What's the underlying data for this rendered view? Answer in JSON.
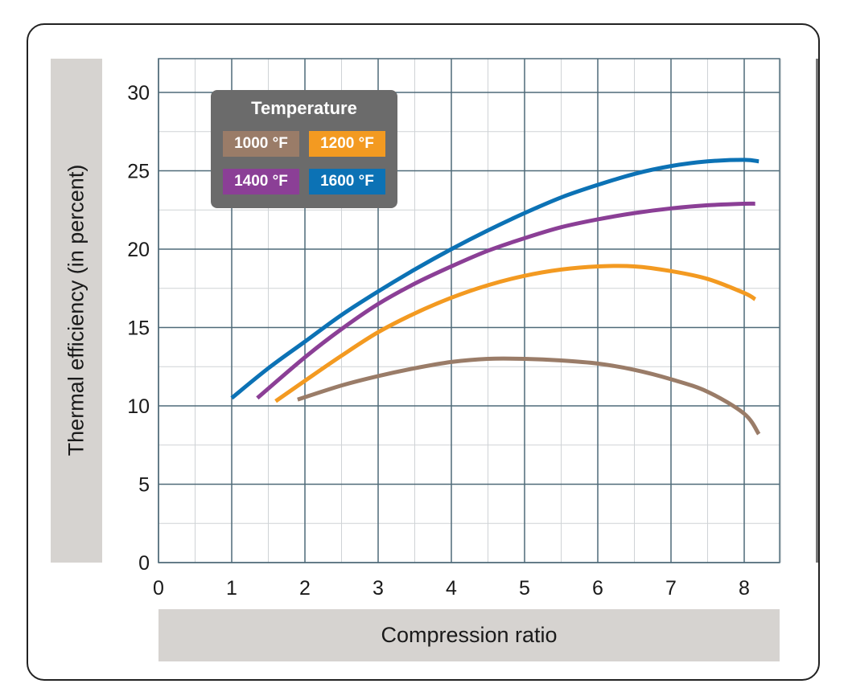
{
  "chart_data": {
    "type": "line",
    "xlabel": "Compression ratio",
    "ylabel": "Thermal efficiency (in percent)",
    "xlim": [
      0,
      8.5
    ],
    "ylim": [
      0,
      30
    ],
    "x_ticks": [
      0,
      1,
      2,
      3,
      4,
      5,
      6,
      7,
      8
    ],
    "y_ticks": [
      0,
      5,
      10,
      15,
      20,
      25,
      30
    ],
    "grid": true,
    "legend_title": "Temperature",
    "legend_placement": "top-left",
    "series": [
      {
        "name": "1000 °F",
        "color": "#9a7c68",
        "x": [
          1.9,
          2.5,
          3,
          3.5,
          4,
          4.5,
          5,
          5.5,
          6,
          6.5,
          7,
          7.5,
          8,
          8.2
        ],
        "y": [
          10.4,
          11.3,
          11.9,
          12.4,
          12.8,
          13.0,
          13.0,
          12.9,
          12.7,
          12.3,
          11.7,
          10.9,
          9.5,
          8.2
        ]
      },
      {
        "name": "1200 °F",
        "color": "#f39a21",
        "x": [
          1.6,
          2,
          2.5,
          3,
          3.5,
          4,
          4.5,
          5,
          5.5,
          6,
          6.5,
          7,
          7.5,
          8,
          8.15
        ],
        "y": [
          10.3,
          11.6,
          13.2,
          14.7,
          15.9,
          16.9,
          17.7,
          18.3,
          18.7,
          18.9,
          18.9,
          18.6,
          18.1,
          17.2,
          16.8
        ]
      },
      {
        "name": "1400 °F",
        "color": "#8b3f96",
        "x": [
          1.35,
          2,
          2.5,
          3,
          3.5,
          4,
          4.5,
          5,
          5.5,
          6,
          6.5,
          7,
          7.5,
          8,
          8.15
        ],
        "y": [
          10.5,
          13.1,
          14.9,
          16.5,
          17.8,
          18.9,
          19.9,
          20.7,
          21.4,
          21.9,
          22.3,
          22.6,
          22.8,
          22.9,
          22.9
        ]
      },
      {
        "name": "1600 °F",
        "color": "#0c72b5",
        "x": [
          1,
          1.5,
          2,
          2.5,
          3,
          3.5,
          4,
          4.5,
          5,
          5.5,
          6,
          6.5,
          7,
          7.5,
          8,
          8.2
        ],
        "y": [
          10.5,
          12.4,
          14.1,
          15.8,
          17.3,
          18.7,
          20.0,
          21.2,
          22.3,
          23.3,
          24.1,
          24.8,
          25.3,
          25.6,
          25.7,
          25.6
        ]
      }
    ]
  }
}
